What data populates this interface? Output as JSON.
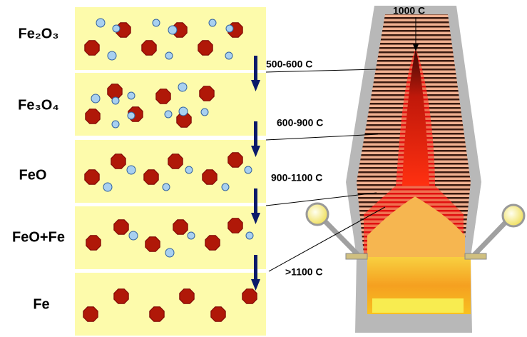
{
  "stages": [
    {
      "label": "Fe₂O₃"
    },
    {
      "label": "Fe₃O₄"
    },
    {
      "label": "FeO"
    },
    {
      "label": "FeO+Fe"
    },
    {
      "label": "Fe"
    }
  ],
  "temperatures": [
    {
      "label": "1000  C"
    },
    {
      "label": "500-600  C"
    },
    {
      "label": "600-900  C"
    },
    {
      "label": "900-1100  C"
    },
    {
      "label": ">1100  C"
    }
  ]
}
